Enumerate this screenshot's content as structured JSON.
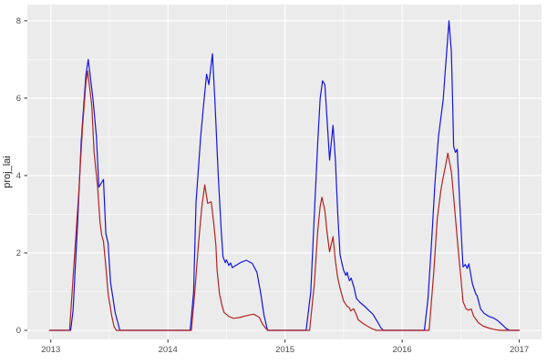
{
  "chart_data": {
    "type": "line",
    "title": "",
    "xlabel": "",
    "ylabel": "proj_lai",
    "x_ticks": [
      2013,
      2014,
      2015,
      2016,
      2017
    ],
    "y_ticks": [
      0,
      2,
      4,
      6,
      8
    ],
    "xlim": [
      2012.8,
      2017.19
    ],
    "ylim": [
      -0.235,
      8.42
    ],
    "grid": "major and minor white gridlines on grey panel",
    "legend_position": "none",
    "theme": {
      "panel_bg": "#ebebeb",
      "grid_color": "#ffffff",
      "axis_text_color": "#4d4d4d",
      "axis_title_color": "#262626",
      "tick_mark_color": "#333333",
      "background": "#ffffff",
      "blue_line_color": "#1414e0",
      "red_line_color": "#b22222"
    },
    "series": [
      {
        "name": "blue_line",
        "color": "#1414e0",
        "points": [
          [
            2012.99,
            0
          ],
          [
            2013.17,
            0
          ],
          [
            2013.19,
            0.5
          ],
          [
            2013.23,
            2.8
          ],
          [
            2013.26,
            4.9
          ],
          [
            2013.3,
            6.6
          ],
          [
            2013.32,
            7.0
          ],
          [
            2013.36,
            6.0
          ],
          [
            2013.39,
            5.0
          ],
          [
            2013.41,
            3.7
          ],
          [
            2013.45,
            3.9
          ],
          [
            2013.47,
            2.5
          ],
          [
            2013.49,
            2.25
          ],
          [
            2013.51,
            1.25
          ],
          [
            2013.55,
            0.45
          ],
          [
            2013.59,
            0
          ],
          [
            2014.19,
            0
          ],
          [
            2014.22,
            1.0
          ],
          [
            2014.24,
            3.3
          ],
          [
            2014.28,
            5.0
          ],
          [
            2014.31,
            6.0
          ],
          [
            2014.33,
            6.62
          ],
          [
            2014.35,
            6.35
          ],
          [
            2014.38,
            7.15
          ],
          [
            2014.4,
            6.0
          ],
          [
            2014.43,
            4.0
          ],
          [
            2014.455,
            2.6
          ],
          [
            2014.47,
            1.9
          ],
          [
            2014.49,
            1.75
          ],
          [
            2014.5,
            1.82
          ],
          [
            2014.52,
            1.68
          ],
          [
            2014.535,
            1.74
          ],
          [
            2014.55,
            1.62
          ],
          [
            2014.57,
            1.66
          ],
          [
            2014.62,
            1.75
          ],
          [
            2014.67,
            1.81
          ],
          [
            2014.72,
            1.73
          ],
          [
            2014.76,
            1.5
          ],
          [
            2014.79,
            1.0
          ],
          [
            2014.82,
            0.4
          ],
          [
            2014.85,
            0
          ],
          [
            2015.18,
            0
          ],
          [
            2015.22,
            1.0
          ],
          [
            2015.25,
            3.0
          ],
          [
            2015.28,
            4.9
          ],
          [
            2015.3,
            6.0
          ],
          [
            2015.32,
            6.45
          ],
          [
            2015.34,
            6.35
          ],
          [
            2015.36,
            5.4
          ],
          [
            2015.38,
            4.4
          ],
          [
            2015.41,
            5.3
          ],
          [
            2015.43,
            4.4
          ],
          [
            2015.45,
            3.0
          ],
          [
            2015.47,
            1.95
          ],
          [
            2015.5,
            1.55
          ],
          [
            2015.52,
            1.42
          ],
          [
            2015.53,
            1.5
          ],
          [
            2015.55,
            1.28
          ],
          [
            2015.565,
            1.35
          ],
          [
            2015.59,
            1.1
          ],
          [
            2015.61,
            0.82
          ],
          [
            2015.64,
            0.72
          ],
          [
            2015.68,
            0.62
          ],
          [
            2015.72,
            0.5
          ],
          [
            2015.75,
            0.42
          ],
          [
            2015.79,
            0.22
          ],
          [
            2015.82,
            0.06
          ],
          [
            2015.84,
            0
          ],
          [
            2016.19,
            0
          ],
          [
            2016.22,
            0.8
          ],
          [
            2016.25,
            2.2
          ],
          [
            2016.28,
            3.8
          ],
          [
            2016.31,
            5.0
          ],
          [
            2016.35,
            5.95
          ],
          [
            2016.37,
            6.8
          ],
          [
            2016.4,
            8.0
          ],
          [
            2016.42,
            7.2
          ],
          [
            2016.43,
            6.0
          ],
          [
            2016.44,
            4.75
          ],
          [
            2016.455,
            4.6
          ],
          [
            2016.47,
            4.68
          ],
          [
            2016.49,
            3.4
          ],
          [
            2016.51,
            2.2
          ],
          [
            2016.52,
            1.64
          ],
          [
            2016.54,
            1.7
          ],
          [
            2016.555,
            1.6
          ],
          [
            2016.57,
            1.72
          ],
          [
            2016.6,
            1.2
          ],
          [
            2016.63,
            0.93
          ],
          [
            2016.64,
            0.9
          ],
          [
            2016.67,
            0.55
          ],
          [
            2016.7,
            0.44
          ],
          [
            2016.74,
            0.36
          ],
          [
            2016.78,
            0.32
          ],
          [
            2016.82,
            0.24
          ],
          [
            2016.86,
            0.13
          ],
          [
            2016.89,
            0.04
          ],
          [
            2016.92,
            0
          ],
          [
            2017.0,
            0
          ]
        ]
      },
      {
        "name": "red_line",
        "color": "#b22222",
        "points": [
          [
            2012.99,
            0
          ],
          [
            2013.16,
            0
          ],
          [
            2013.2,
            1.8
          ],
          [
            2013.24,
            3.6
          ],
          [
            2013.27,
            5.2
          ],
          [
            2013.3,
            6.4
          ],
          [
            2013.315,
            6.7
          ],
          [
            2013.35,
            5.8
          ],
          [
            2013.37,
            4.6
          ],
          [
            2013.4,
            3.7
          ],
          [
            2013.42,
            2.8
          ],
          [
            2013.435,
            2.45
          ],
          [
            2013.45,
            2.3
          ],
          [
            2013.47,
            1.65
          ],
          [
            2013.49,
            0.95
          ],
          [
            2013.52,
            0.38
          ],
          [
            2013.54,
            0.1
          ],
          [
            2013.56,
            0
          ],
          [
            2014.2,
            0
          ],
          [
            2014.23,
            1.0
          ],
          [
            2014.26,
            2.2
          ],
          [
            2014.29,
            3.2
          ],
          [
            2014.315,
            3.76
          ],
          [
            2014.34,
            3.28
          ],
          [
            2014.37,
            3.32
          ],
          [
            2014.39,
            2.8
          ],
          [
            2014.41,
            2.2
          ],
          [
            2014.42,
            1.56
          ],
          [
            2014.44,
            0.95
          ],
          [
            2014.46,
            0.66
          ],
          [
            2014.48,
            0.46
          ],
          [
            2014.52,
            0.36
          ],
          [
            2014.56,
            0.31
          ],
          [
            2014.61,
            0.33
          ],
          [
            2014.67,
            0.38
          ],
          [
            2014.73,
            0.42
          ],
          [
            2014.78,
            0.34
          ],
          [
            2014.81,
            0.15
          ],
          [
            2014.85,
            0
          ],
          [
            2015.21,
            0
          ],
          [
            2015.25,
            1.2
          ],
          [
            2015.28,
            2.6
          ],
          [
            2015.3,
            3.2
          ],
          [
            2015.315,
            3.44
          ],
          [
            2015.34,
            3.1
          ],
          [
            2015.36,
            2.5
          ],
          [
            2015.38,
            2.03
          ],
          [
            2015.41,
            2.42
          ],
          [
            2015.43,
            1.8
          ],
          [
            2015.45,
            1.35
          ],
          [
            2015.47,
            1.09
          ],
          [
            2015.5,
            0.76
          ],
          [
            2015.53,
            0.62
          ],
          [
            2015.55,
            0.58
          ],
          [
            2015.56,
            0.5
          ],
          [
            2015.585,
            0.56
          ],
          [
            2015.61,
            0.4
          ],
          [
            2015.625,
            0.27
          ],
          [
            2015.68,
            0.15
          ],
          [
            2015.72,
            0.08
          ],
          [
            2015.75,
            0.03
          ],
          [
            2015.78,
            0
          ],
          [
            2016.23,
            0
          ],
          [
            2016.27,
            1.5
          ],
          [
            2016.3,
            2.9
          ],
          [
            2016.33,
            3.6
          ],
          [
            2016.345,
            3.87
          ],
          [
            2016.37,
            4.25
          ],
          [
            2016.39,
            4.58
          ],
          [
            2016.42,
            4.1
          ],
          [
            2016.45,
            3.1
          ],
          [
            2016.48,
            2.03
          ],
          [
            2016.5,
            1.4
          ],
          [
            2016.52,
            0.74
          ],
          [
            2016.545,
            0.56
          ],
          [
            2016.565,
            0.52
          ],
          [
            2016.59,
            0.55
          ],
          [
            2016.61,
            0.37
          ],
          [
            2016.65,
            0.2
          ],
          [
            2016.69,
            0.11
          ],
          [
            2016.74,
            0.06
          ],
          [
            2016.79,
            0.02
          ],
          [
            2016.84,
            0
          ],
          [
            2017.0,
            0
          ]
        ]
      }
    ]
  }
}
